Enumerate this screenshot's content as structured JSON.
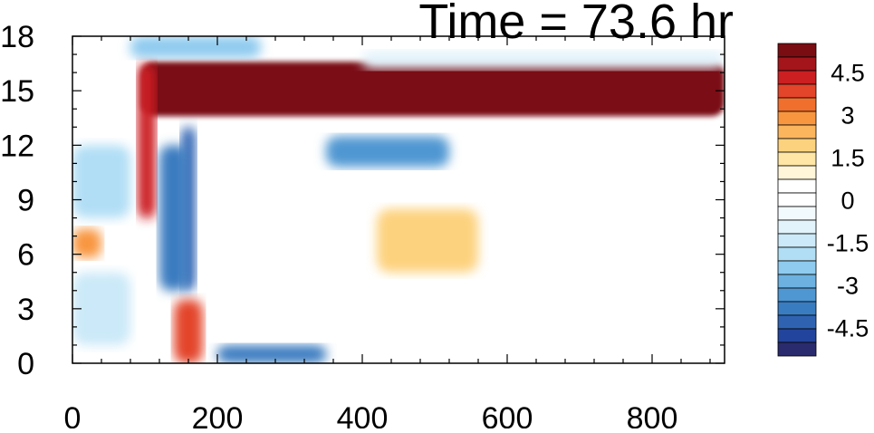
{
  "chart_data": {
    "type": "heatmap",
    "title": "Time = 73.6 hr",
    "xlabel": "",
    "ylabel": "",
    "xlim": [
      0,
      900
    ],
    "ylim": [
      0,
      18
    ],
    "x_ticks": [
      "0",
      "200",
      "400",
      "600",
      "800"
    ],
    "x_tick_values": [
      0,
      200,
      400,
      600,
      800
    ],
    "y_ticks": [
      "0",
      "3",
      "6",
      "9",
      "12",
      "15",
      "18"
    ],
    "y_tick_values": [
      0,
      3,
      6,
      9,
      12,
      15,
      18
    ],
    "colorbar": {
      "labels": [
        "4.5",
        "3",
        "1.5",
        "0",
        "-1.5",
        "-3",
        "-4.5"
      ],
      "label_values": [
        4.5,
        3,
        1.5,
        0,
        -1.5,
        -3,
        -4.5
      ],
      "levels": [
        -5.5,
        -5,
        -4.5,
        -4,
        -3.5,
        -3,
        -2.5,
        -2,
        -1.5,
        -1,
        -0.5,
        0,
        0.5,
        1,
        1.5,
        2,
        2.5,
        3,
        3.5,
        4,
        4.5,
        5,
        5.5
      ],
      "colors": [
        "#2a2b6e",
        "#23449c",
        "#2f63b2",
        "#3a7cc0",
        "#4f97d2",
        "#6cb1e0",
        "#8fcbef",
        "#b1def5",
        "#cbe9f8",
        "#e3f3fb",
        "#f3fafd",
        "#ffffff",
        "#ffffff",
        "#fff5d8",
        "#ffe6a6",
        "#fdd27e",
        "#fbb55d",
        "#f89640",
        "#f06f2c",
        "#e3452a",
        "#cb1f22",
        "#a3151a",
        "#7a0d12"
      ]
    },
    "features": [
      {
        "kind": "band",
        "x": [
          95,
          900
        ],
        "y": [
          13.6,
          16.6
        ],
        "value": 5.5
      },
      {
        "kind": "band",
        "x": [
          90,
          115
        ],
        "y": [
          8,
          16.5
        ],
        "value": 4.5
      },
      {
        "kind": "band",
        "x": [
          150,
          170
        ],
        "y": [
          4,
          13
        ],
        "value": -4.5
      },
      {
        "kind": "band",
        "x": [
          120,
          160
        ],
        "y": [
          4,
          12
        ],
        "value": -4.0
      },
      {
        "kind": "band",
        "x": [
          200,
          350
        ],
        "y": [
          0,
          1.0
        ],
        "value": -4.0
      },
      {
        "kind": "band",
        "x": [
          350,
          520
        ],
        "y": [
          10.8,
          12.5
        ],
        "value": -3.5
      },
      {
        "kind": "band",
        "x": [
          0,
          40
        ],
        "y": [
          5.8,
          7.4
        ],
        "value": 3.0
      },
      {
        "kind": "band",
        "x": [
          420,
          560
        ],
        "y": [
          5,
          8.5
        ],
        "value": 2.0
      },
      {
        "kind": "band",
        "x": [
          0,
          80
        ],
        "y": [
          8,
          12
        ],
        "value": -2.0
      },
      {
        "kind": "band",
        "x": [
          0,
          80
        ],
        "y": [
          1,
          5
        ],
        "value": -1.5
      },
      {
        "kind": "band",
        "x": [
          400,
          900
        ],
        "y": [
          16.2,
          17.2
        ],
        "value": -1.0
      },
      {
        "kind": "band",
        "x": [
          80,
          260
        ],
        "y": [
          16.8,
          18
        ],
        "value": -2.5
      },
      {
        "kind": "band",
        "x": [
          140,
          180
        ],
        "y": [
          0,
          3.5
        ],
        "value": 4.0
      },
      {
        "kind": "band",
        "x": [
          580,
          900
        ],
        "y": [
          4,
          10
        ],
        "value": 0.8
      }
    ]
  }
}
